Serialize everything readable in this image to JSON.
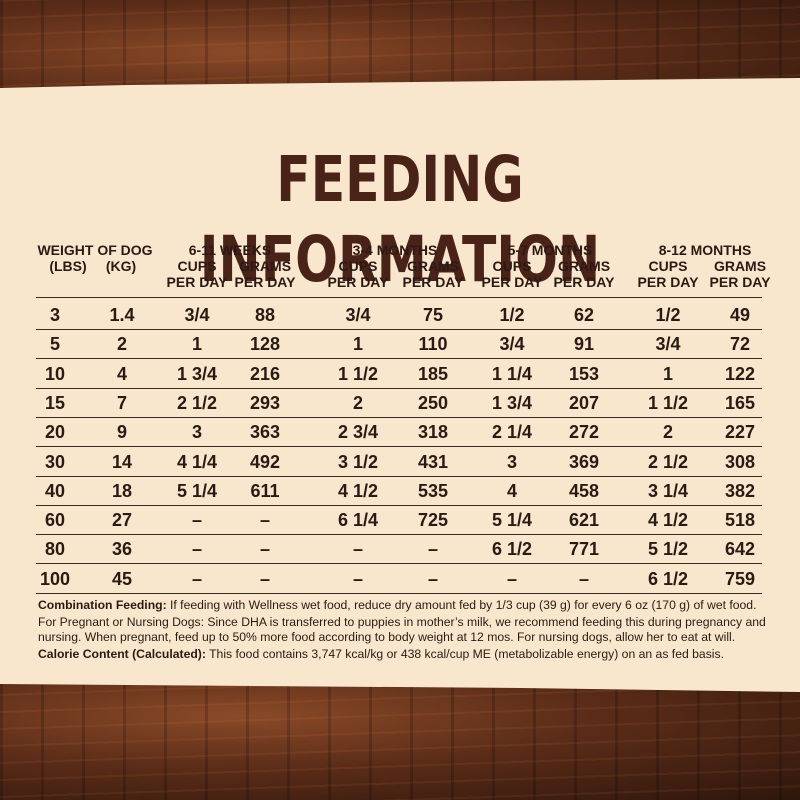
{
  "title": "FEEDING INFORMATION",
  "headers": {
    "weight_label": "WEIGHT OF DOG",
    "lbs": "(LBS)",
    "kg": "(KG)",
    "groups": [
      "6-11 WEEKS",
      "3-4 MONTHS",
      "5-7 MONTHS",
      "8-12 MONTHS"
    ],
    "cups": "CUPS",
    "grams": "GRAMS",
    "per_day": "PER DAY"
  },
  "rows": [
    [
      "3",
      "1.4",
      "3/4",
      "88",
      "3/4",
      "75",
      "1/2",
      "62",
      "1/2",
      "49"
    ],
    [
      "5",
      "2",
      "1",
      "128",
      "1",
      "110",
      "3/4",
      "91",
      "3/4",
      "72"
    ],
    [
      "10",
      "4",
      "1 3/4",
      "216",
      "1 1/2",
      "185",
      "1 1/4",
      "153",
      "1",
      "122"
    ],
    [
      "15",
      "7",
      "2 1/2",
      "293",
      "2",
      "250",
      "1 3/4",
      "207",
      "1 1/2",
      "165"
    ],
    [
      "20",
      "9",
      "3",
      "363",
      "2 3/4",
      "318",
      "2 1/4",
      "272",
      "2",
      "227"
    ],
    [
      "30",
      "14",
      "4 1/4",
      "492",
      "3 1/2",
      "431",
      "3",
      "369",
      "2 1/2",
      "308"
    ],
    [
      "40",
      "18",
      "5 1/4",
      "611",
      "4 1/2",
      "535",
      "4",
      "458",
      "3 1/4",
      "382"
    ],
    [
      "60",
      "27",
      "–",
      "–",
      "6 1/4",
      "725",
      "5 1/4",
      "621",
      "4 1/2",
      "518"
    ],
    [
      "80",
      "36",
      "–",
      "–",
      "–",
      "–",
      "6 1/2",
      "771",
      "5 1/2",
      "642"
    ],
    [
      "100",
      "45",
      "–",
      "–",
      "–",
      "–",
      "–",
      "–",
      "6 1/2",
      "759"
    ]
  ],
  "notes": {
    "combo_label": "Combination Feeding:",
    "combo_text": " If feeding with Wellness wet food, reduce dry amount fed by 1/3 cup (39 g) for every 6 oz (170 g) of wet food.",
    "pregnant_text": "For Pregnant or Nursing Dogs: Since DHA is transferred to puppies in mother’s milk, we recommend feeding this during pregnancy and nursing. When pregnant, feed up to 50% more food according to body weight at 12 mos. For nursing dogs, allow her to eat at will.",
    "calorie_label": "Calorie Content (Calculated):",
    "calorie_text": " This food contains 3,747 kcal/kg or 438 kcal/cup ME (metabolizable energy) on an as fed basis."
  },
  "colors": {
    "title": "#4a2318",
    "paper": "#f8e7cc",
    "wood": "#5a2c18"
  }
}
